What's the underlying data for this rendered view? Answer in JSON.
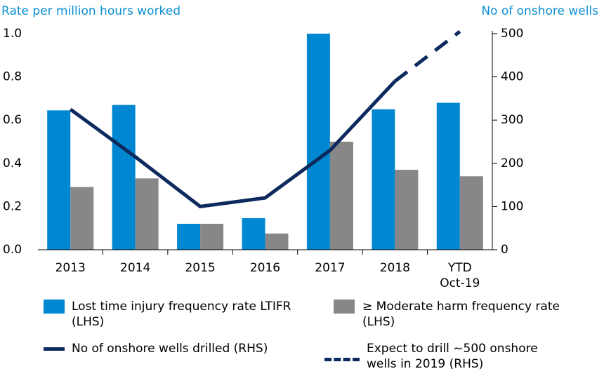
{
  "chart_data": {
    "type": "bar",
    "ylabel": "Rate per million hours worked",
    "y2label": "No of onshore wells",
    "categories": [
      "2013",
      "2014",
      "2015",
      "2016",
      "2017",
      "2018",
      "YTD Oct-19"
    ],
    "series": [
      {
        "name": "Lost time injury frequency rate LTIFR (LHS)",
        "type": "bar",
        "color": "#0087d2",
        "values": [
          0.645,
          0.67,
          0.12,
          0.146,
          1.0,
          0.65,
          0.68
        ]
      },
      {
        "name": "≥ Moderate harm frequency rate (LHS)",
        "type": "bar",
        "color": "#878787",
        "values": [
          0.29,
          0.33,
          0.12,
          0.075,
          0.5,
          0.37,
          0.34
        ]
      },
      {
        "name": "No of onshore wells drilled (RHS)",
        "type": "line",
        "linestyle": "solid",
        "axis": "y2",
        "color": "#0c2a5e",
        "values": [
          325,
          215,
          100,
          120,
          230,
          390,
          null
        ]
      },
      {
        "name": "Expect to drill ~500 onshore wells in 2019 (RHS)",
        "type": "line",
        "linestyle": "dashed",
        "axis": "y2",
        "color": "#0c2a5e",
        "values": [
          null,
          null,
          null,
          null,
          null,
          390,
          505
        ]
      }
    ],
    "ylim": [
      0,
      1.0
    ],
    "yticks": [
      {
        "value": 0,
        "label": "0.0"
      },
      0.2,
      0.4,
      0.6,
      0.8,
      {
        "value": 1,
        "label": "1.0"
      }
    ],
    "y2lim": [
      0,
      500
    ],
    "y2ticks": [
      0,
      100,
      200,
      300,
      400,
      500
    ]
  }
}
